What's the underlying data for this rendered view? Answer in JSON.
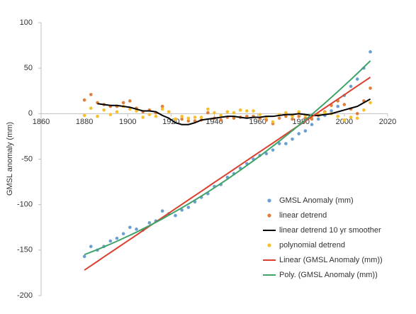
{
  "chart_data": {
    "type": "scatter",
    "ylabel": "GMSL anomaly (mm)",
    "xlim": [
      1860,
      2020
    ],
    "xticks": [
      1860,
      1880,
      1900,
      1920,
      1940,
      1960,
      1980,
      2000,
      2020
    ],
    "ylim": [
      -200,
      100
    ],
    "yticks": [
      100,
      50,
      0,
      -50,
      -100,
      -150,
      -200
    ],
    "grid": false,
    "legend": "lower right",
    "x": [
      1880,
      1883,
      1886,
      1889,
      1892,
      1895,
      1898,
      1901,
      1904,
      1907,
      1910,
      1913,
      1916,
      1919,
      1922,
      1925,
      1928,
      1931,
      1934,
      1937,
      1940,
      1943,
      1946,
      1949,
      1952,
      1955,
      1958,
      1961,
      1964,
      1967,
      1970,
      1973,
      1976,
      1979,
      1982,
      1985,
      1988,
      1991,
      1994,
      1997,
      2000,
      2003,
      2006,
      2009,
      2012
    ],
    "series": [
      {
        "name": "GMSL Anomaly (mm)",
        "color": "#6a9fd2",
        "mode": "markers",
        "values": [
          -157,
          -146,
          -150,
          -146,
          -140,
          -137,
          -132,
          -125,
          -127,
          -128,
          -120,
          -118,
          -107,
          -110,
          -112,
          -106,
          -103,
          -97,
          -92,
          -88,
          -80,
          -78,
          -70,
          -66,
          -60,
          -55,
          -50,
          -46,
          -44,
          -40,
          -33,
          -33,
          -28,
          -22,
          -19,
          -12,
          -6,
          -2,
          3,
          8,
          20,
          30,
          38,
          50,
          68
        ]
      },
      {
        "name": "linear detrend",
        "color": "#e07f3c",
        "mode": "markers",
        "values": [
          15,
          21,
          12,
          10,
          8,
          8,
          12,
          14,
          6,
          2,
          4,
          1,
          8,
          2,
          -6,
          -6,
          -8,
          -8,
          -7,
          1,
          -5,
          -7,
          -4,
          -5,
          -4,
          -3,
          -3,
          -5,
          -7,
          -11,
          -5,
          -3,
          -6,
          -3,
          -5,
          -6,
          -2,
          2,
          9,
          14,
          10,
          5,
          0,
          14,
          28
        ]
      },
      {
        "name": "linear detrend 10 yr smoother",
        "color": "#000000",
        "mode": "line",
        "values": [
          null,
          null,
          11,
          10,
          9,
          9,
          8,
          7,
          5,
          3,
          3,
          2,
          -2,
          -5,
          -10,
          -12,
          -12,
          -10,
          -7,
          -6,
          -5,
          -4,
          -3,
          -3,
          -4,
          -5,
          -4,
          -4,
          -3,
          -3,
          -2,
          -1,
          -1,
          0,
          -1,
          -2,
          -2,
          -1,
          0,
          2,
          4,
          6,
          8,
          12,
          16
        ]
      },
      {
        "name": "polynomial detrend",
        "color": "#f5c02c",
        "mode": "markers",
        "values": [
          -2,
          6,
          -3,
          4,
          -1,
          2,
          8,
          5,
          3,
          -4,
          -1,
          -3,
          5,
          2,
          -6,
          -3,
          -5,
          -4,
          -4,
          5,
          1,
          -2,
          2,
          1,
          4,
          3,
          3,
          -1,
          -4,
          -9,
          -1,
          1,
          -3,
          2,
          -2,
          -3,
          -1,
          1,
          0,
          -3,
          -7,
          -4,
          -5,
          4,
          12
        ]
      },
      {
        "name": "Linear (GMSL Anomaly (mm))",
        "color": "#d9402e",
        "mode": "line",
        "values": [
          -172,
          -167.2,
          -162.4,
          -157.5,
          -152.7,
          -147.9,
          -143.1,
          -138.3,
          -133.5,
          -128.6,
          -123.8,
          -119,
          -114.2,
          -109.4,
          -104.5,
          -99.7,
          -94.9,
          -90.1,
          -85.3,
          -80.5,
          -75.6,
          -70.8,
          -66,
          -61.2,
          -56.4,
          -51.5,
          -46.7,
          -41.9,
          -37.1,
          -32.3,
          -27.5,
          -22.6,
          -17.8,
          -13,
          -8.2,
          -3.4,
          1.5,
          6.3,
          11.1,
          15.9,
          20.7,
          25.6,
          30.4,
          35.2,
          40
        ]
      },
      {
        "name": "Poly. (GMSL Anomaly (mm))",
        "color": "#3fa46a",
        "mode": "line",
        "values": [
          -155,
          -152.2,
          -149.4,
          -146.4,
          -143.4,
          -140.3,
          -137,
          -133.7,
          -130.3,
          -126.7,
          -123.1,
          -119.4,
          -115.6,
          -111.6,
          -107.6,
          -103.5,
          -99.3,
          -95,
          -90.6,
          -86.1,
          -81.5,
          -76.8,
          -72,
          -67.1,
          -62.1,
          -57,
          -51.9,
          -46.6,
          -41.2,
          -35.7,
          -30.2,
          -24.5,
          -18.7,
          -12.9,
          -6.9,
          -0.9,
          5.3,
          11.5,
          17.9,
          24.3,
          30.9,
          37.5,
          44.2,
          51.1,
          58
        ]
      }
    ]
  }
}
